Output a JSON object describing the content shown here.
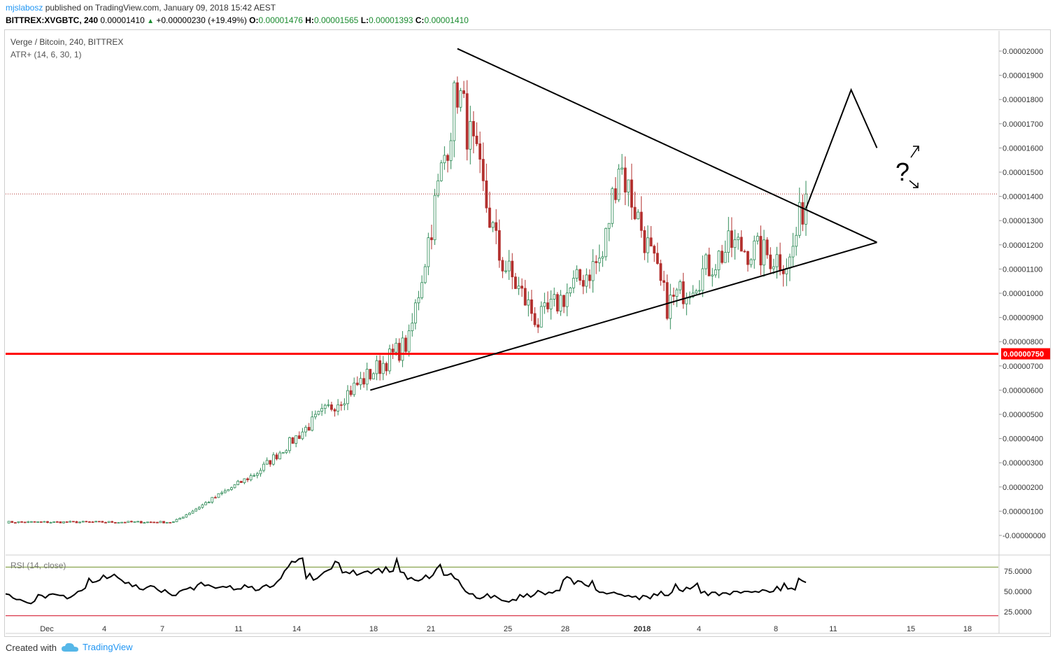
{
  "header": {
    "author": "mjslabosz",
    "published_text": "published on TradingView.com, January 09, 2018 15:42 AEST",
    "symbol": "BITTREX:XVGBTC, 240",
    "price": "0.00001410",
    "change": "+0.00000230 (+19.49%)",
    "o_label": "O:",
    "o": "0.00001476",
    "h_label": "H:",
    "h": "0.00001565",
    "l_label": "L:",
    "l": "0.00001393",
    "c_label": "C:",
    "c": "0.00001410"
  },
  "legend": {
    "title": "Verge / Bitcoin, 240, BITTREX",
    "indicator": "ATR+ (14, 6, 30, 1)",
    "rsi": "RSI (14, close)"
  },
  "footer": {
    "created": "Created with",
    "brand": "TradingView"
  },
  "colors": {
    "up": "#2e8b57",
    "down": "#b3302e",
    "support": "#ff0000",
    "rsi_upper": "#6b8e23",
    "rsi_lower": "#d0021b",
    "price_line": "#b3302e"
  },
  "icons": {
    "tradingview_logo": "cloud-icon",
    "price_up": "triangle-up-icon"
  },
  "chart_data": [
    {
      "type": "candlestick",
      "title": "Verge / Bitcoin, 240, BITTREX",
      "y_ticks": [
        "0.00002000",
        "0.00001900",
        "0.00001800",
        "0.00001700",
        "0.00001600",
        "0.00001500",
        "0.00001400",
        "0.00001300",
        "0.00001200",
        "0.00001100",
        "0.00001000",
        "0.00000900",
        "0.00000800",
        "0.00000700",
        "0.00000600",
        "0.00000500",
        "0.00000400",
        "0.00000300",
        "0.00000200",
        "0.00000100",
        "-0.00000000"
      ],
      "y_tick_values": [
        2000,
        1900,
        1800,
        1700,
        1600,
        1500,
        1400,
        1300,
        1200,
        1100,
        1000,
        900,
        800,
        700,
        600,
        500,
        400,
        300,
        200,
        100,
        0
      ],
      "ylim": [
        -30,
        2100
      ],
      "y_unit_scale": "1e-8 BTC",
      "x_ticks": [
        "Dec",
        "4",
        "7",
        "11",
        "14",
        "18",
        "21",
        "25",
        "28",
        "2018",
        "4",
        "8",
        "11",
        "15",
        "18"
      ],
      "current_price": 1410,
      "support_level": {
        "value": 750,
        "label": "0.00000750"
      },
      "segments": [
        {
          "name": "base",
          "from": [
            0,
            55
          ],
          "to": [
            52,
            55
          ]
        },
        {
          "name": "early-rise",
          "from": [
            52,
            55
          ],
          "to": [
            78,
            260
          ]
        },
        {
          "name": "rise",
          "from": [
            78,
            260
          ],
          "to": [
            97,
            490
          ]
        },
        {
          "name": "surge",
          "from": [
            97,
            490
          ],
          "to": [
            125,
            800
          ]
        },
        {
          "name": "spike",
          "from": [
            125,
            800
          ],
          "to": [
            140,
            1850
          ]
        },
        {
          "name": "drop",
          "from": [
            140,
            1850
          ],
          "to": [
            153,
            1150
          ]
        },
        {
          "name": "pullback",
          "from": [
            153,
            1150
          ],
          "to": [
            165,
            880
          ]
        },
        {
          "name": "recover",
          "from": [
            165,
            880
          ],
          "to": [
            185,
            1150
          ]
        },
        {
          "name": "second-peak",
          "from": [
            185,
            1150
          ],
          "to": [
            190,
            1550
          ]
        },
        {
          "name": "decline",
          "from": [
            190,
            1550
          ],
          "to": [
            205,
            950
          ]
        },
        {
          "name": "range",
          "from": [
            205,
            950
          ],
          "to": [
            225,
            1200
          ]
        },
        {
          "name": "consolidation",
          "from": [
            225,
            1200
          ],
          "to": [
            243,
            1130
          ]
        },
        {
          "name": "breakout",
          "from": [
            243,
            1130
          ],
          "to": [
            248,
            1410
          ]
        }
      ],
      "candle_count": 248,
      "trendlines": [
        {
          "name": "upper-trendline",
          "points": [
            [
              140,
              2010
            ],
            [
              270,
              1210
            ]
          ]
        },
        {
          "name": "lower-trendline",
          "points": [
            [
              113,
              600
            ],
            [
              270,
              1210
            ]
          ]
        },
        {
          "name": "projection",
          "points": [
            [
              248,
              1350
            ],
            [
              262,
              1840
            ],
            [
              270,
              1600
            ]
          ]
        }
      ],
      "annotation_text": "?"
    },
    {
      "type": "line",
      "title": "RSI (14, close)",
      "y_ticks": [
        "75.0000",
        "50.0000",
        "25.0000"
      ],
      "y_tick_values": [
        75,
        50,
        25
      ],
      "bands": [
        80,
        20
      ],
      "ylim": [
        15,
        93
      ],
      "values": [
        47,
        46,
        42,
        40,
        40,
        38,
        36,
        35,
        38,
        46,
        45,
        42,
        46,
        47,
        46,
        45,
        45,
        41,
        43,
        46,
        50,
        51,
        54,
        66,
        61,
        62,
        64,
        70,
        66,
        68,
        71,
        67,
        64,
        60,
        61,
        56,
        58,
        53,
        52,
        55,
        57,
        56,
        52,
        49,
        52,
        48,
        45,
        45,
        50,
        52,
        53,
        55,
        52,
        58,
        61,
        57,
        58,
        56,
        54,
        55,
        56,
        55,
        57,
        52,
        53,
        53,
        58,
        55,
        56,
        51,
        52,
        56,
        58,
        55,
        57,
        62,
        66,
        75,
        80,
        87,
        86,
        90,
        91,
        66,
        72,
        64,
        66,
        70,
        74,
        76,
        78,
        87,
        85,
        73,
        74,
        72,
        76,
        70,
        72,
        74,
        75,
        72,
        76,
        78,
        73,
        80,
        74,
        75,
        90,
        74,
        73,
        65,
        67,
        64,
        63,
        65,
        70,
        66,
        70,
        78,
        83,
        70,
        70,
        72,
        66,
        64,
        56,
        50,
        47,
        47,
        42,
        41,
        43,
        47,
        42,
        45,
        42,
        39,
        38,
        37,
        40,
        39,
        46,
        43,
        47,
        43,
        46,
        51,
        49,
        46,
        49,
        48,
        51,
        51,
        64,
        68,
        66,
        59,
        63,
        62,
        58,
        56,
        63,
        52,
        49,
        49,
        47,
        48,
        49,
        47,
        46,
        44,
        45,
        43,
        44,
        40,
        45,
        44,
        41,
        47,
        45,
        50,
        45,
        45,
        49,
        59,
        52,
        50,
        55,
        53,
        56,
        60,
        48,
        50,
        45,
        49,
        49,
        45,
        48,
        48,
        46,
        50,
        50,
        48,
        50,
        50,
        49,
        50,
        49,
        52,
        51,
        49,
        50,
        56,
        51,
        60,
        53,
        54,
        52,
        66,
        63,
        61
      ],
      "x_domain": [
        0,
        248
      ]
    }
  ]
}
